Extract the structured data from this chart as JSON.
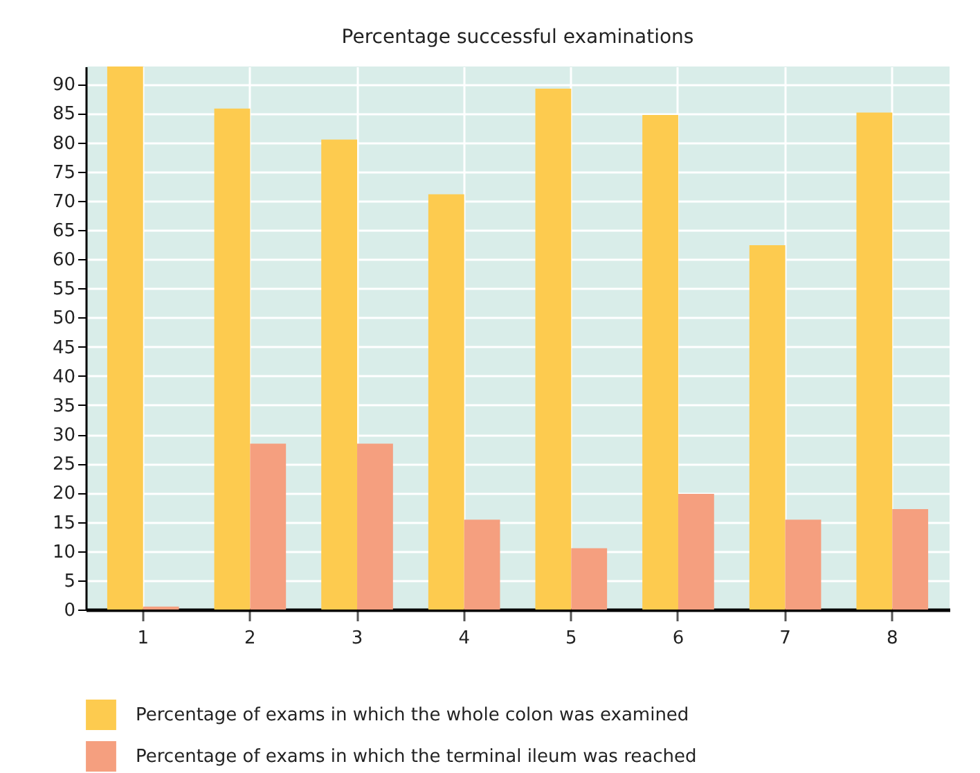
{
  "chart_data": {
    "type": "bar",
    "title": "Percentage successful examinations",
    "categories": [
      "1",
      "2",
      "3",
      "4",
      "5",
      "6",
      "7",
      "8"
    ],
    "series": [
      {
        "name": "Percentage of exams in which the whole colon was examined",
        "color": "#fdcb4f",
        "values": [
          93,
          85.8,
          80.5,
          71.1,
          89.2,
          84.7,
          62.4,
          85.1
        ]
      },
      {
        "name": "Percentage of exams in which the terminal ileum was reached",
        "color": "#f59f7f",
        "values": [
          0.5,
          28.4,
          28.4,
          15.4,
          10.5,
          19.8,
          15.4,
          17.2
        ]
      }
    ],
    "ylim": [
      0,
      93
    ],
    "yticks": [
      0,
      5,
      10,
      15,
      20,
      25,
      30,
      35,
      40,
      45,
      50,
      55,
      60,
      65,
      70,
      75,
      80,
      85,
      90
    ],
    "grid": true,
    "legend": "bottom"
  }
}
